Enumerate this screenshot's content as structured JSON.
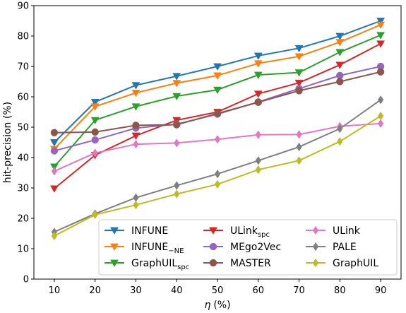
{
  "chart_data": {
    "type": "line",
    "xlabel_symbol": "η",
    "xlabel_unit": "(%)",
    "ylabel": "hit-precision (%)",
    "x": [
      10,
      20,
      30,
      40,
      50,
      60,
      70,
      80,
      90
    ],
    "xlim": [
      5,
      95
    ],
    "ylim": [
      0,
      90
    ],
    "yticks": [
      0,
      10,
      20,
      30,
      40,
      50,
      60,
      70,
      80,
      90
    ],
    "grid": false,
    "legend_position": "lower-right",
    "legend_columns": 3,
    "series": [
      {
        "name": "INFUNE",
        "name_base": "INFUNE",
        "name_sub": "",
        "color": "#1f77b4",
        "marker": "triangle-down",
        "values": [
          45.0,
          58.3,
          63.8,
          66.8,
          70.0,
          73.5,
          76.0,
          80.0,
          85.0
        ]
      },
      {
        "name": "INFUNE-NE",
        "name_base": "INFUNE",
        "name_sub": "−NE",
        "color": "#ff7f0e",
        "marker": "triangle-down",
        "values": [
          42.8,
          56.8,
          61.3,
          64.5,
          67.0,
          71.0,
          73.3,
          78.0,
          83.7
        ]
      },
      {
        "name": "GraphUILspc",
        "name_base": "GraphUIL",
        "name_sub": "spc",
        "color": "#2ca02c",
        "marker": "triangle-down",
        "values": [
          37.0,
          52.3,
          56.8,
          60.2,
          62.3,
          67.2,
          68.0,
          74.7,
          80.3
        ]
      },
      {
        "name": "ULinkspc",
        "name_base": "ULink",
        "name_sub": "spc",
        "color": "#d62728",
        "marker": "triangle-down",
        "values": [
          29.8,
          40.8,
          47.2,
          52.3,
          55.0,
          61.0,
          64.6,
          70.5,
          77.5
        ]
      },
      {
        "name": "MEgo2Vec",
        "name_base": "MEgo2Vec",
        "name_sub": "",
        "color": "#9467bd",
        "marker": "circle",
        "values": [
          42.2,
          45.8,
          49.7,
          51.0,
          54.3,
          58.3,
          62.7,
          67.0,
          70.0
        ]
      },
      {
        "name": "MASTER",
        "name_base": "MASTER",
        "name_sub": "",
        "color": "#8c564b",
        "marker": "circle",
        "values": [
          48.2,
          48.4,
          50.6,
          50.8,
          54.5,
          58.2,
          62.0,
          65.0,
          68.2
        ]
      },
      {
        "name": "ULink",
        "name_base": "ULink",
        "name_sub": "",
        "color": "#e377c2",
        "marker": "diamond",
        "values": [
          35.5,
          41.5,
          44.4,
          44.8,
          46.0,
          47.5,
          47.6,
          50.3,
          51.2
        ]
      },
      {
        "name": "PALE",
        "name_base": "PALE",
        "name_sub": "",
        "color": "#7f7f7f",
        "marker": "diamond",
        "values": [
          15.5,
          21.5,
          26.8,
          30.8,
          34.6,
          39.0,
          43.5,
          49.5,
          59.0
        ]
      },
      {
        "name": "GraphUIL",
        "name_base": "GraphUIL",
        "name_sub": "",
        "color": "#bcbd22",
        "marker": "diamond",
        "values": [
          14.2,
          21.2,
          24.4,
          28.0,
          31.2,
          36.0,
          39.0,
          45.3,
          53.7
        ]
      }
    ]
  }
}
